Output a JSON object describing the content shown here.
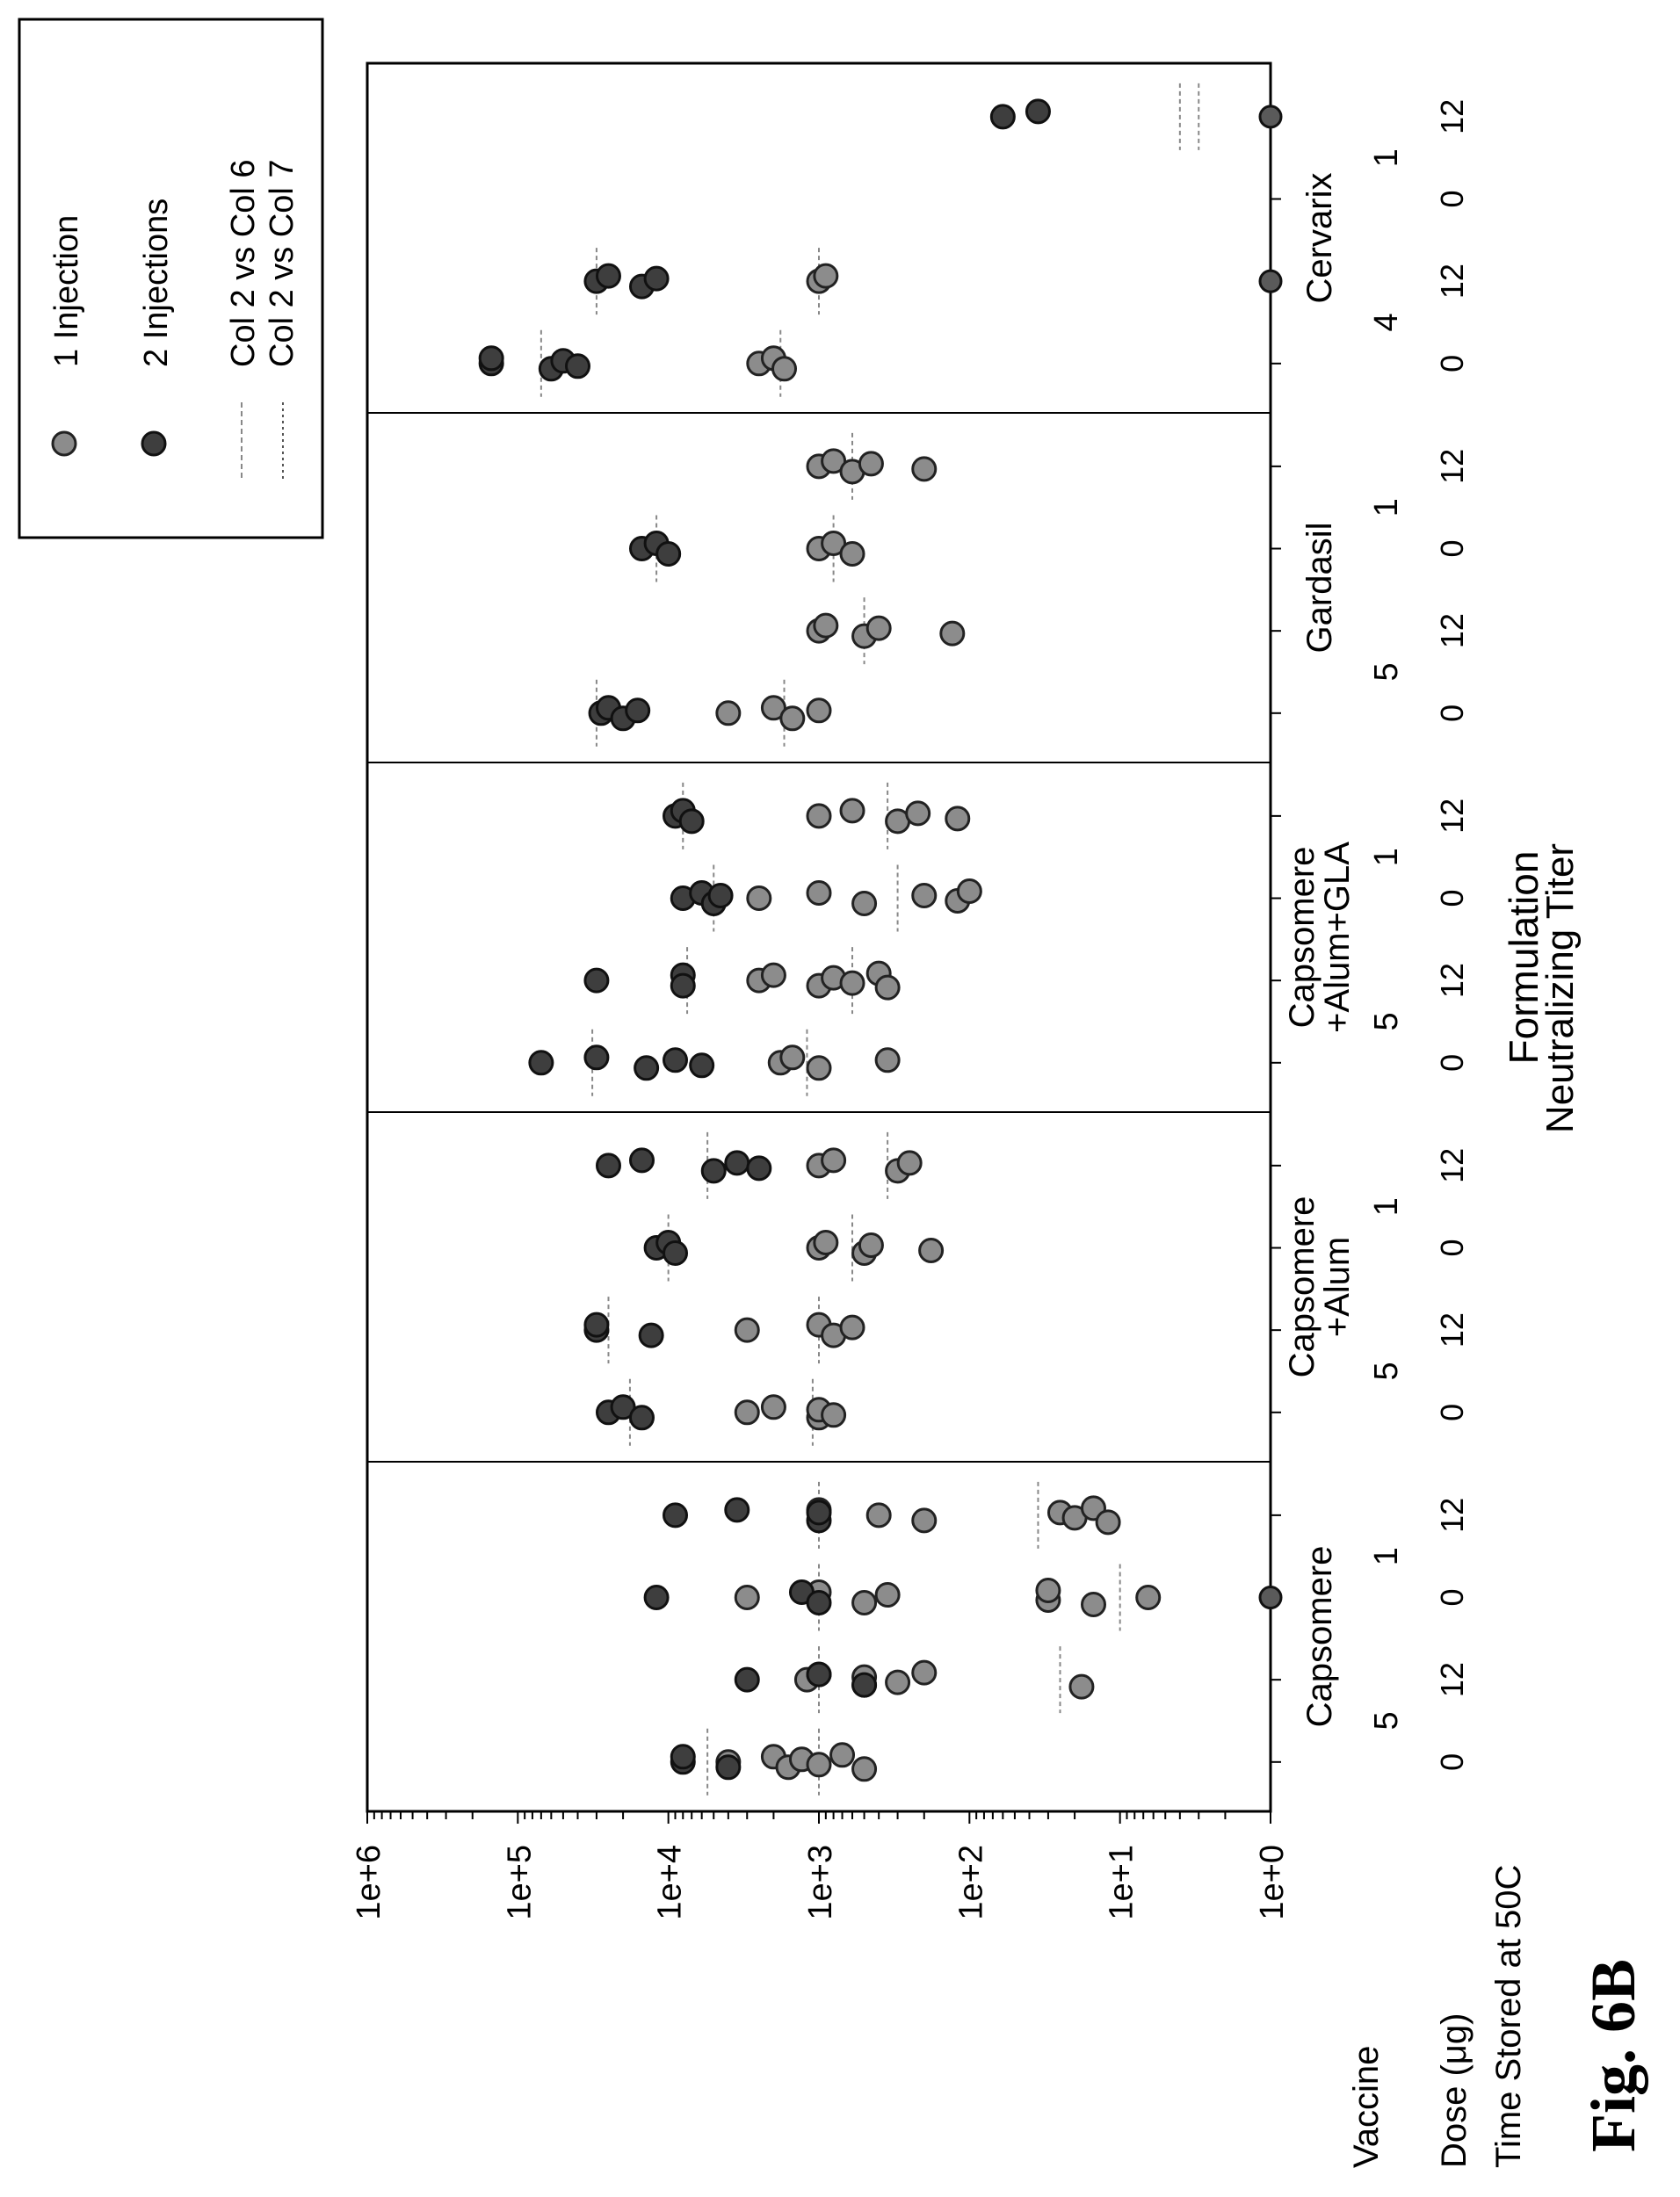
{
  "figure_label": "Fig. 6B",
  "row_labels": {
    "vaccine": "Vaccine",
    "dose": "Dose (μg)",
    "time": "Time Stored at 50C"
  },
  "chart_data": {
    "type": "scatter",
    "orientation": "rotated 90° counter-clockwise",
    "xlabel": "Formulation",
    "ylabel": "Neutralizing Titer",
    "y_scale": "log",
    "ylim": [
      1,
      1000000
    ],
    "y_ticks": [
      "1e+0",
      "1e+1",
      "1e+2",
      "1e+3",
      "1e+4",
      "1e+5",
      "1e+6"
    ],
    "legend": {
      "placement": "top-right",
      "entries": [
        "1 Injection",
        "2 Injections",
        "Col 2 vs Col 6",
        "Col 2 vs Col 7"
      ]
    },
    "colors": {
      "one_injection": "#8c8c8c",
      "two_injections": "#3e3e3e",
      "median_line": "#888888"
    },
    "groups": [
      {
        "vaccine": "Capsomere",
        "columns": [
          {
            "dose": "5",
            "time": "0",
            "one_injection": [
              4000,
              2000,
              1600,
              1300,
              1000,
              700,
              500
            ],
            "two_injections": [
              8000,
              8000,
              4000
            ],
            "median_one": 1000,
            "median_two": 5500
          },
          {
            "dose": "5",
            "time": "12",
            "one_injection": [
              1200,
              1000,
              500,
              500,
              300,
              200,
              18
            ],
            "two_injections": [
              3000,
              1000,
              500
            ],
            "median_one": 1000,
            "median_two": null,
            "median_extra": 25
          },
          {
            "dose": "1",
            "time": "0",
            "one_injection": [
              3000,
              1000,
              500,
              350,
              30,
              30,
              15,
              6.5
            ],
            "two_injections": [
              12000,
              1300,
              1000
            ],
            "median_one": 1000,
            "median_two": null,
            "median_extra": 10,
            "zero_points": [
              1
            ]
          },
          {
            "dose": "1",
            "time": "12",
            "one_injection": [
              400,
              1000,
              200,
              25,
              20,
              15,
              12
            ],
            "two_injections": [
              9000,
              3500,
              1000,
              1000
            ],
            "median_one": 1000,
            "median_two": null,
            "median_extra": 35
          }
        ]
      },
      {
        "vaccine": "Capsomere\n+Alum",
        "columns": [
          {
            "dose": "5",
            "time": "0",
            "one_injection": [
              3000,
              2000,
              1000,
              1000,
              800
            ],
            "two_injections": [
              25000,
              20000,
              15000
            ],
            "median_one": 1100,
            "median_two": 18000
          },
          {
            "dose": "5",
            "time": "12",
            "one_injection": [
              3000,
              1000,
              800,
              600
            ],
            "two_injections": [
              30000,
              30000,
              13000
            ],
            "median_one": 1000,
            "median_two": 25000
          },
          {
            "dose": "1",
            "time": "0",
            "one_injection": [
              1000,
              900,
              500,
              450,
              180
            ],
            "two_injections": [
              12000,
              10000,
              9000
            ],
            "median_one": 600,
            "median_two": 10000
          },
          {
            "dose": "1",
            "time": "12",
            "one_injection": [
              1000,
              800,
              300,
              250
            ],
            "two_injections": [
              25000,
              15000,
              5000,
              3500,
              2500
            ],
            "median_one": 350,
            "median_two": 5500
          }
        ]
      },
      {
        "vaccine": "Capsomere\n+Alum+GLA",
        "columns": [
          {
            "dose": "5",
            "time": "0",
            "one_injection": [
              1800,
              1500,
              1000,
              350
            ],
            "two_injections": [
              70000,
              30000,
              14000,
              9000,
              6000
            ],
            "median_one": 1200,
            "median_two": 32000
          },
          {
            "dose": "5",
            "time": "12",
            "one_injection": [
              2500,
              2000,
              1000,
              800,
              600,
              400,
              350
            ],
            "two_injections": [
              30000,
              8000,
              8000
            ],
            "median_one": 600,
            "median_two": 7500
          },
          {
            "dose": "1",
            "time": "0",
            "one_injection": [
              2500,
              1000,
              500,
              200,
              120,
              100
            ],
            "two_injections": [
              8000,
              6000,
              5000,
              4500
            ],
            "median_one": 300,
            "median_two": 5000
          },
          {
            "dose": "1",
            "time": "12",
            "one_injection": [
              1000,
              600,
              300,
              220,
              120
            ],
            "two_injections": [
              9000,
              8000,
              7000
            ],
            "median_one": 350,
            "median_two": 8000
          }
        ]
      },
      {
        "vaccine": "Gardasil",
        "columns": [
          {
            "dose": "5",
            "time": "0",
            "one_injection": [
              4000,
              2000,
              1500,
              1000
            ],
            "two_injections": [
              28000,
              25000,
              20000,
              16000
            ],
            "median_one": 1700,
            "median_two": 30000
          },
          {
            "dose": "5",
            "time": "12",
            "one_injection": [
              1000,
              900,
              500,
              400,
              130
            ],
            "two_injections": [],
            "median_one": 500,
            "median_two": null
          },
          {
            "dose": "1",
            "time": "0",
            "one_injection": [
              1000,
              800,
              600
            ],
            "two_injections": [
              15000,
              12000,
              10000
            ],
            "median_one": 800,
            "median_two": 12000
          },
          {
            "dose": "1",
            "time": "12",
            "one_injection": [
              1000,
              800,
              600,
              450,
              200
            ],
            "two_injections": [],
            "median_one": 600,
            "median_two": null
          }
        ]
      },
      {
        "vaccine": "Cervarix",
        "columns": [
          {
            "dose": "4",
            "time": "0",
            "one_injection": [
              2500,
              2000,
              1700
            ],
            "two_injections": [
              150000,
              150000,
              60000,
              50000,
              40000
            ],
            "median_one": 1800,
            "median_two": 70000
          },
          {
            "dose": "4",
            "time": "12",
            "one_injection": [
              1000,
              900
            ],
            "two_injections": [
              30000,
              25000,
              15000,
              12000
            ],
            "median_one": 1000,
            "median_two": 30000,
            "zero_points": [
              1
            ]
          },
          {
            "dose": "1",
            "time": "0",
            "one_injection": [],
            "two_injections": [],
            "median_one": null,
            "median_two": null
          },
          {
            "dose": "1",
            "time": "12",
            "one_injection": [],
            "two_injections": [
              60,
              35
            ],
            "median_one": 4,
            "median_two": 3,
            "zero_points": [
              1
            ]
          }
        ]
      }
    ]
  }
}
